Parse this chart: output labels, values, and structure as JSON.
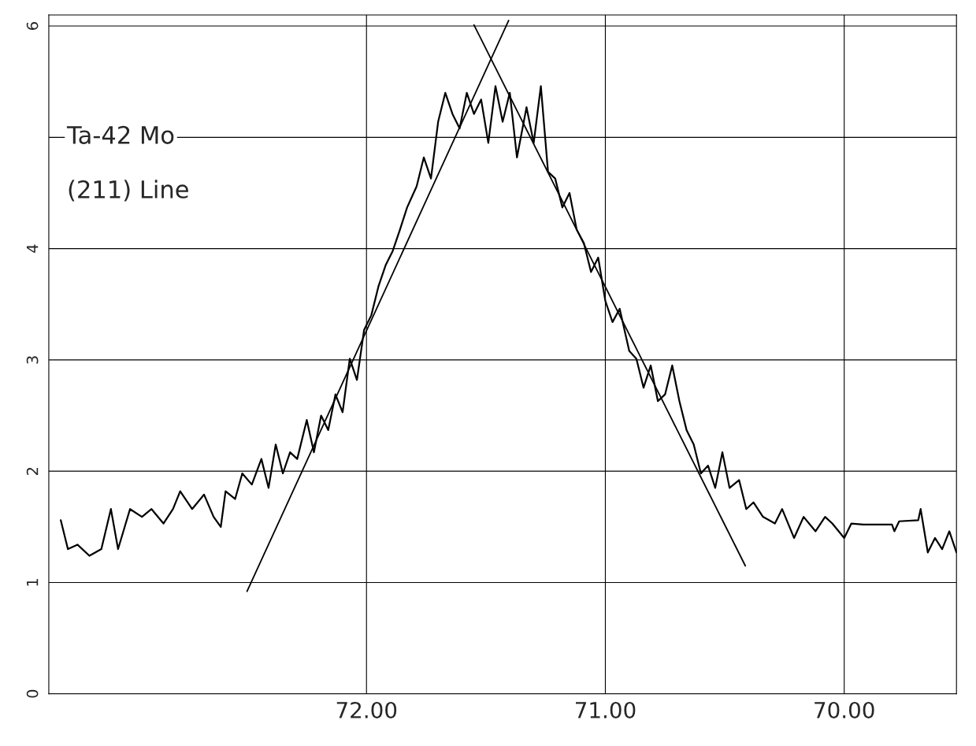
{
  "chart_data": {
    "type": "line",
    "title": "Ta-42 Mo",
    "subtitle": "(211) Line",
    "xlim": [
      73.33,
      69.53
    ],
    "ylim": [
      0,
      6.1
    ],
    "xticks": [
      {
        "value": 72,
        "label": "72.00"
      },
      {
        "value": 71,
        "label": "71.00"
      },
      {
        "value": 70,
        "label": "70.00"
      }
    ],
    "yticks": [
      0,
      1,
      2,
      3,
      4,
      {
        "value": 5,
        "label": null
      },
      6
    ],
    "grid": true,
    "series": [
      {
        "color": "#000000",
        "x": [
          73.28,
          73.25,
          73.21,
          73.16,
          73.11,
          73.07,
          73.04,
          72.99,
          72.94,
          72.9,
          72.85,
          72.81,
          72.78,
          72.73,
          72.68,
          72.64,
          72.61,
          72.59,
          72.55,
          72.52,
          72.48,
          72.44,
          72.41,
          72.38,
          72.35,
          72.32,
          72.29,
          72.25,
          72.22,
          72.19,
          72.16,
          72.13,
          72.1,
          72.07,
          72.04,
          72.01,
          71.98,
          71.95,
          71.92,
          71.89,
          71.86,
          71.83,
          71.79,
          71.76,
          71.73,
          71.7,
          71.67,
          71.64,
          71.61,
          71.58,
          71.55,
          71.52,
          71.49,
          71.46,
          71.43,
          71.4,
          71.37,
          71.33,
          71.3,
          71.27,
          71.24,
          71.21,
          71.18,
          71.15,
          71.12,
          71.09,
          71.06,
          71.03,
          71.0,
          70.97,
          70.94,
          70.9,
          70.87,
          70.84,
          70.81,
          70.78,
          70.75,
          70.72,
          70.69,
          70.66,
          70.63,
          70.6,
          70.57,
          70.54,
          70.51,
          70.48,
          70.44,
          70.41,
          70.38,
          70.34,
          70.29,
          70.26,
          70.21,
          70.17,
          70.12,
          70.08,
          70.05,
          70.0,
          69.97,
          69.92,
          69.83,
          69.8,
          69.79,
          69.77,
          69.69,
          69.68,
          69.65,
          69.62,
          69.59,
          69.56,
          69.53
        ],
        "values": [
          1.56,
          1.3,
          1.34,
          1.24,
          1.3,
          1.66,
          1.3,
          1.66,
          1.59,
          1.66,
          1.53,
          1.66,
          1.82,
          1.66,
          1.79,
          1.59,
          1.5,
          1.82,
          1.75,
          1.98,
          1.88,
          2.11,
          1.85,
          2.24,
          1.98,
          2.17,
          2.11,
          2.46,
          2.17,
          2.5,
          2.37,
          2.69,
          2.53,
          3.01,
          2.82,
          3.27,
          3.4,
          3.66,
          3.85,
          3.98,
          4.17,
          4.37,
          4.56,
          4.82,
          4.63,
          5.14,
          5.4,
          5.21,
          5.08,
          5.4,
          5.21,
          5.34,
          4.95,
          5.46,
          5.14,
          5.4,
          4.82,
          5.27,
          4.95,
          5.46,
          4.69,
          4.63,
          4.37,
          4.5,
          4.17,
          4.05,
          3.79,
          3.92,
          3.53,
          3.34,
          3.46,
          3.08,
          3.01,
          2.75,
          2.95,
          2.63,
          2.69,
          2.95,
          2.63,
          2.37,
          2.24,
          1.98,
          2.05,
          1.85,
          2.17,
          1.85,
          1.92,
          1.66,
          1.72,
          1.59,
          1.53,
          1.66,
          1.4,
          1.59,
          1.46,
          1.59,
          1.53,
          1.4,
          1.53,
          1.52,
          1.52,
          1.52,
          1.46,
          1.55,
          1.56,
          1.66,
          1.27,
          1.4,
          1.3,
          1.46,
          1.27
        ]
      },
      {
        "color": "#000000",
        "x": [
          72.5,
          71.405
        ],
        "values": [
          0.92,
          6.05
        ]
      },
      {
        "color": "#000000",
        "x": [
          71.55,
          70.414
        ],
        "values": [
          6.01,
          1.15
        ]
      }
    ]
  }
}
